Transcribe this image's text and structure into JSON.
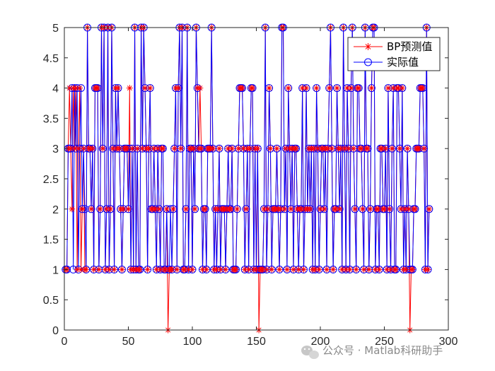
{
  "chart_data": {
    "type": "line",
    "title": "",
    "xlabel": "",
    "ylabel": "",
    "xlim": [
      0,
      300
    ],
    "ylim": [
      0,
      5
    ],
    "xticks": [
      0,
      50,
      100,
      150,
      200,
      250,
      300
    ],
    "yticks": [
      0,
      0.5,
      1,
      1.5,
      2,
      2.5,
      3,
      3.5,
      4,
      4.5,
      5
    ],
    "xtick_labels": [
      "0",
      "50",
      "100",
      "150",
      "200",
      "250",
      "300"
    ],
    "ytick_labels": [
      "0",
      "0.5",
      "1",
      "1.5",
      "2",
      "2.5",
      "3",
      "3.5",
      "4",
      "4.5",
      "5"
    ],
    "grid": false,
    "legend_position": "top-right",
    "series": [
      {
        "name": "BP预测值",
        "color": "#ff0000",
        "marker": "asterisk",
        "values": [
          1,
          1,
          3,
          4,
          3,
          2,
          4,
          3,
          4,
          1,
          3,
          4,
          1,
          2,
          3,
          1,
          1,
          5,
          3,
          3,
          2,
          3,
          1,
          4,
          4,
          4,
          1,
          2,
          5,
          3,
          5,
          1,
          2,
          5,
          1,
          2,
          5,
          3,
          1,
          4,
          3,
          4,
          3,
          2,
          1,
          2,
          3,
          3,
          3,
          2,
          4,
          1,
          3,
          1,
          5,
          1,
          3,
          1,
          1,
          5,
          3,
          5,
          4,
          3,
          1,
          3,
          4,
          2,
          2,
          3,
          2,
          1,
          3,
          2,
          1,
          3,
          3,
          1,
          1,
          2,
          0,
          1,
          1,
          1,
          2,
          3,
          4,
          1,
          4,
          5,
          3,
          5,
          1,
          1,
          2,
          5,
          1,
          3,
          3,
          1,
          3,
          2,
          5,
          4,
          3,
          4,
          3,
          1,
          2,
          2,
          1,
          3,
          3,
          3,
          5,
          3,
          1,
          2,
          1,
          2,
          3,
          1,
          2,
          2,
          2,
          1,
          2,
          3,
          2,
          2,
          3,
          1,
          1,
          1,
          2,
          3,
          4,
          4,
          4,
          3,
          1,
          2,
          3,
          1,
          3,
          4,
          4,
          1,
          3,
          1,
          3,
          0,
          1,
          1,
          1,
          2,
          5,
          1,
          2,
          4,
          3,
          1,
          2,
          2,
          2,
          3,
          2,
          1,
          2,
          5,
          5,
          2,
          3,
          1,
          4,
          3,
          2,
          3,
          1,
          3,
          3,
          2,
          1,
          2,
          2,
          4,
          1,
          2,
          4,
          2,
          3,
          2,
          3,
          1,
          3,
          1,
          4,
          3,
          1,
          2,
          3,
          3,
          2,
          3,
          1,
          3,
          4,
          5,
          3,
          1,
          2,
          2,
          4,
          3,
          2,
          3,
          1,
          5,
          3,
          1,
          4,
          3,
          1,
          4,
          5,
          3,
          2,
          1,
          4,
          4,
          3,
          3,
          2,
          1,
          5,
          3,
          3,
          1,
          2,
          4,
          5,
          5,
          1,
          2,
          2,
          1,
          3,
          3,
          2,
          2,
          3,
          1,
          4,
          2,
          1,
          3,
          4,
          1,
          1,
          4,
          4,
          3,
          2,
          4,
          1,
          2,
          1,
          3,
          2,
          0,
          1,
          1,
          2,
          2,
          3,
          3,
          3,
          4,
          4,
          4,
          3,
          1,
          5,
          1,
          2
        ]
      },
      {
        "name": "实际值",
        "color": "#0000ff",
        "marker": "circle",
        "values": [
          1,
          1,
          3,
          3,
          3,
          4,
          1,
          4,
          3,
          4,
          1,
          3,
          4,
          2,
          3,
          2,
          1,
          5,
          3,
          3,
          2,
          3,
          1,
          4,
          4,
          4,
          1,
          2,
          5,
          3,
          5,
          1,
          2,
          5,
          1,
          2,
          5,
          3,
          1,
          4,
          3,
          4,
          3,
          2,
          1,
          2,
          3,
          3,
          3,
          2,
          3,
          1,
          3,
          1,
          5,
          1,
          3,
          1,
          1,
          5,
          3,
          5,
          4,
          3,
          1,
          3,
          4,
          2,
          2,
          3,
          2,
          1,
          3,
          2,
          1,
          3,
          3,
          1,
          1,
          2,
          1,
          1,
          2,
          1,
          2,
          3,
          4,
          1,
          4,
          5,
          3,
          5,
          1,
          1,
          2,
          5,
          1,
          3,
          3,
          1,
          3,
          2,
          5,
          4,
          3,
          3,
          3,
          1,
          2,
          2,
          1,
          3,
          3,
          3,
          5,
          3,
          1,
          2,
          1,
          2,
          3,
          1,
          2,
          2,
          2,
          1,
          2,
          3,
          2,
          2,
          3,
          1,
          1,
          1,
          2,
          3,
          4,
          4,
          4,
          3,
          1,
          2,
          3,
          1,
          3,
          4,
          4,
          1,
          3,
          1,
          3,
          1,
          1,
          1,
          1,
          2,
          5,
          1,
          2,
          4,
          3,
          1,
          2,
          2,
          2,
          3,
          2,
          1,
          2,
          5,
          5,
          2,
          3,
          1,
          4,
          3,
          2,
          3,
          1,
          3,
          3,
          2,
          1,
          2,
          2,
          4,
          1,
          2,
          4,
          2,
          3,
          2,
          3,
          1,
          3,
          1,
          4,
          3,
          1,
          2,
          3,
          3,
          2,
          3,
          1,
          3,
          4,
          5,
          3,
          1,
          2,
          2,
          4,
          3,
          2,
          3,
          1,
          5,
          3,
          1,
          4,
          3,
          1,
          4,
          5,
          3,
          2,
          1,
          4,
          4,
          3,
          3,
          2,
          1,
          5,
          3,
          3,
          1,
          2,
          4,
          5,
          5,
          1,
          2,
          2,
          1,
          3,
          3,
          2,
          2,
          3,
          1,
          4,
          2,
          1,
          3,
          4,
          1,
          1,
          4,
          4,
          3,
          2,
          4,
          1,
          2,
          1,
          3,
          2,
          1,
          1,
          1,
          2,
          2,
          3,
          3,
          3,
          4,
          4,
          4,
          3,
          1,
          5,
          1,
          2
        ]
      }
    ]
  },
  "watermark": {
    "text": "公众号 · Matlab科研助手",
    "icon": "wechat-icon"
  }
}
